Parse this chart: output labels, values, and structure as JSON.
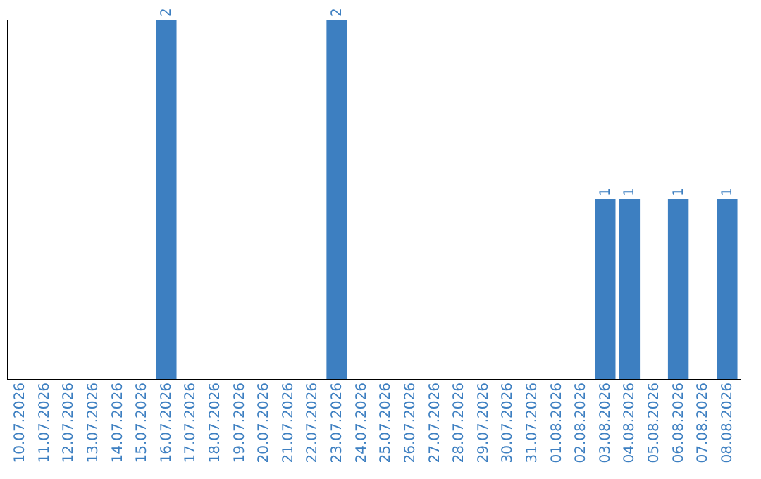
{
  "chart_data": {
    "type": "bar",
    "categories": [
      "10.07.2026",
      "11.07.2026",
      "12.07.2026",
      "13.07.2026",
      "14.07.2026",
      "15.07.2026",
      "16.07.2026",
      "17.07.2026",
      "18.07.2026",
      "19.07.2026",
      "20.07.2026",
      "21.07.2026",
      "22.07.2026",
      "23.07.2026",
      "24.07.2026",
      "25.07.2026",
      "26.07.2026",
      "27.07.2026",
      "28.07.2026",
      "29.07.2026",
      "30.07.2026",
      "31.07.2026",
      "01.08.2026",
      "02.08.2026",
      "03.08.2026",
      "04.08.2026",
      "05.08.2026",
      "06.08.2026",
      "07.08.2026",
      "08.08.2026"
    ],
    "values": [
      null,
      null,
      null,
      null,
      null,
      null,
      2,
      null,
      null,
      null,
      null,
      null,
      null,
      2,
      null,
      null,
      null,
      null,
      null,
      null,
      null,
      null,
      null,
      null,
      1,
      1,
      null,
      1,
      null,
      1
    ],
    "color": "#3d7fc1",
    "data_labels": true,
    "tick_labels": "x",
    "grid": false
  }
}
